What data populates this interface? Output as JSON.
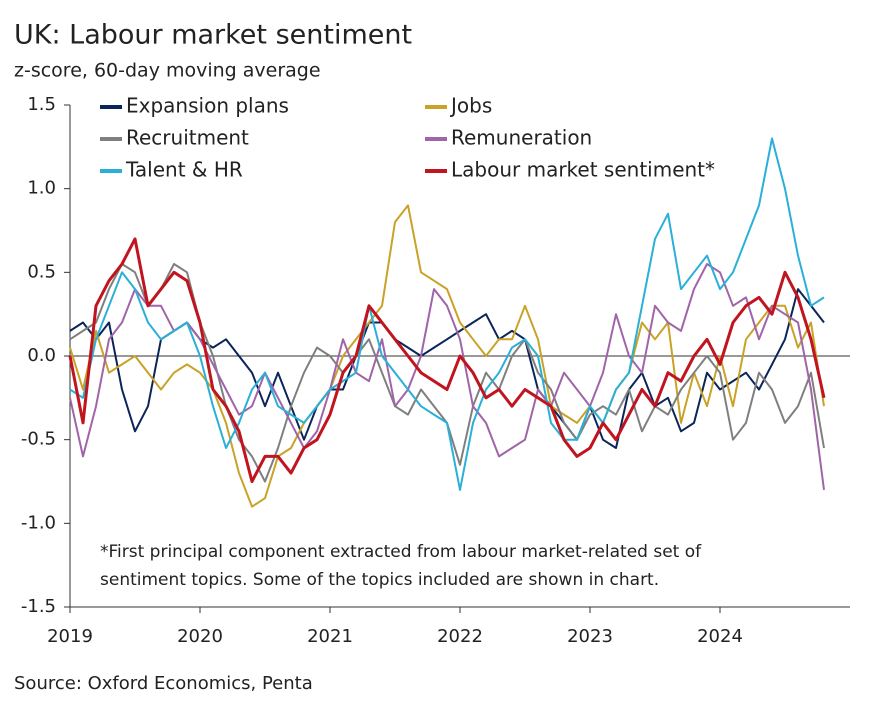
{
  "chart_data": {
    "type": "line",
    "title": "UK: Labour market sentiment",
    "subtitle": "z-score, 60-day moving average",
    "annotation": [
      "*First principal component extracted from labour market-related set of",
      "sentiment topics. Some of the topics included are shown in chart."
    ],
    "source": "Source: Oxford Economics, Penta",
    "x": [
      2019.0,
      2019.1,
      2019.2,
      2019.3,
      2019.4,
      2019.5,
      2019.6,
      2019.7,
      2019.8,
      2019.9,
      2020.0,
      2020.1,
      2020.2,
      2020.3,
      2020.4,
      2020.5,
      2020.6,
      2020.7,
      2020.8,
      2020.9,
      2021.0,
      2021.1,
      2021.2,
      2021.3,
      2021.4,
      2021.5,
      2021.6,
      2021.7,
      2021.8,
      2021.9,
      2022.0,
      2022.1,
      2022.2,
      2022.3,
      2022.4,
      2022.5,
      2022.6,
      2022.7,
      2022.8,
      2022.9,
      2023.0,
      2023.1,
      2023.2,
      2023.3,
      2023.4,
      2023.5,
      2023.6,
      2023.7,
      2023.8,
      2023.9,
      2024.0,
      2024.1,
      2024.2,
      2024.3,
      2024.4,
      2024.5,
      2024.6,
      2024.7,
      2024.8
    ],
    "series": [
      {
        "name": "Expansion plans",
        "color": "#0b2559",
        "values": [
          0.15,
          0.2,
          0.1,
          0.2,
          -0.2,
          -0.45,
          -0.3,
          0.1,
          0.15,
          0.2,
          0.1,
          0.05,
          0.1,
          0,
          -0.1,
          -0.3,
          -0.1,
          -0.3,
          -0.5,
          -0.3,
          -0.2,
          -0.2,
          0,
          0.2,
          0.2,
          0.1,
          0.05,
          0,
          0.05,
          0.1,
          0.15,
          0.2,
          0.25,
          0.1,
          0.15,
          0.1,
          -0.2,
          -0.3,
          -0.4,
          -0.5,
          -0.3,
          -0.5,
          -0.55,
          -0.2,
          -0.1,
          -0.3,
          -0.25,
          -0.45,
          -0.4,
          -0.1,
          -0.2,
          -0.15,
          -0.1,
          -0.2,
          -0.05,
          0.1,
          0.4,
          0.3,
          0.2
        ]
      },
      {
        "name": "Jobs",
        "color": "#c9a227",
        "values": [
          0.05,
          -0.2,
          0.15,
          -0.1,
          -0.05,
          0,
          -0.1,
          -0.2,
          -0.1,
          -0.05,
          -0.1,
          -0.2,
          -0.4,
          -0.7,
          -0.9,
          -0.85,
          -0.6,
          -0.55,
          -0.4,
          -0.3,
          -0.2,
          0,
          0.1,
          0.2,
          0.3,
          0.8,
          0.9,
          0.5,
          0.45,
          0.4,
          0.2,
          0.1,
          0,
          0.1,
          0.1,
          0.3,
          0.1,
          -0.3,
          -0.35,
          -0.4,
          -0.3,
          -0.4,
          -0.2,
          -0.1,
          0.2,
          0.1,
          0.2,
          -0.4,
          -0.1,
          -0.3,
          0,
          -0.3,
          0.1,
          0.2,
          0.3,
          0.3,
          0.05,
          0.2,
          -0.3
        ]
      },
      {
        "name": "Recruitment",
        "color": "#7f7f7f",
        "values": [
          0.1,
          0.15,
          0.2,
          0.4,
          0.55,
          0.5,
          0.3,
          0.4,
          0.55,
          0.5,
          0.2,
          0,
          -0.3,
          -0.5,
          -0.6,
          -0.75,
          -0.55,
          -0.3,
          -0.1,
          0.05,
          0,
          -0.1,
          0,
          0.1,
          -0.1,
          -0.3,
          -0.35,
          -0.2,
          -0.3,
          -0.4,
          -0.65,
          -0.3,
          -0.1,
          -0.2,
          0,
          0.1,
          -0.1,
          -0.2,
          -0.4,
          -0.5,
          -0.35,
          -0.3,
          -0.35,
          -0.2,
          -0.45,
          -0.3,
          -0.35,
          -0.2,
          -0.1,
          0,
          -0.1,
          -0.5,
          -0.4,
          -0.1,
          -0.2,
          -0.4,
          -0.3,
          -0.1,
          -0.55
        ]
      },
      {
        "name": "Remuneration",
        "color": "#a064a8",
        "values": [
          -0.25,
          -0.6,
          -0.3,
          0.1,
          0.2,
          0.4,
          0.3,
          0.3,
          0.15,
          0.2,
          0.1,
          -0.05,
          -0.2,
          -0.35,
          -0.3,
          -0.1,
          -0.25,
          -0.4,
          -0.55,
          -0.45,
          -0.2,
          0.1,
          -0.1,
          -0.15,
          0.1,
          -0.3,
          -0.2,
          0,
          0.4,
          0.3,
          0.1,
          -0.3,
          -0.4,
          -0.6,
          -0.55,
          -0.5,
          -0.2,
          -0.3,
          -0.1,
          -0.2,
          -0.3,
          -0.1,
          0.25,
          0,
          -0.1,
          0.3,
          0.2,
          0.15,
          0.4,
          0.55,
          0.5,
          0.3,
          0.35,
          0.1,
          0.3,
          0.25,
          0.2,
          -0.2,
          -0.8
        ]
      },
      {
        "name": "Talent & HR",
        "color": "#2ab0d8",
        "values": [
          -0.2,
          -0.25,
          0.1,
          0.3,
          0.5,
          0.4,
          0.2,
          0.1,
          0.15,
          0.2,
          0,
          -0.3,
          -0.55,
          -0.4,
          -0.2,
          -0.1,
          -0.3,
          -0.35,
          -0.4,
          -0.3,
          -0.2,
          -0.15,
          -0.1,
          0.3,
          0,
          -0.1,
          -0.2,
          -0.3,
          -0.35,
          -0.4,
          -0.8,
          -0.4,
          -0.2,
          -0.1,
          0.05,
          0.1,
          0,
          -0.4,
          -0.5,
          -0.5,
          -0.3,
          -0.4,
          -0.2,
          -0.1,
          0.3,
          0.7,
          0.85,
          0.4,
          0.5,
          0.6,
          0.4,
          0.5,
          0.7,
          0.9,
          1.3,
          1.0,
          0.6,
          0.3,
          0.35
        ]
      },
      {
        "name": "Labour market sentiment*",
        "color": "#c0141f",
        "values": [
          0,
          -0.4,
          0.3,
          0.45,
          0.55,
          0.7,
          0.3,
          0.4,
          0.5,
          0.45,
          0.2,
          -0.2,
          -0.3,
          -0.45,
          -0.75,
          -0.6,
          -0.6,
          -0.7,
          -0.55,
          -0.5,
          -0.35,
          -0.1,
          0,
          0.3,
          0.2,
          0.1,
          0,
          -0.1,
          -0.15,
          -0.2,
          0,
          -0.1,
          -0.25,
          -0.2,
          -0.3,
          -0.2,
          -0.25,
          -0.3,
          -0.5,
          -0.6,
          -0.55,
          -0.4,
          -0.5,
          -0.35,
          -0.2,
          -0.3,
          -0.1,
          -0.15,
          0,
          0.1,
          -0.05,
          0.2,
          0.3,
          0.35,
          0.25,
          0.5,
          0.35,
          0.1,
          -0.25
        ]
      }
    ],
    "xlim": [
      2019,
      2025
    ],
    "xticks": [
      2019,
      2020,
      2021,
      2022,
      2023,
      2024
    ],
    "ylim": [
      -1.5,
      1.5
    ],
    "yticks": [
      1.5,
      {
        "value": 1,
        "label": "1.0"
      },
      0.5,
      {
        "value": 0,
        "label": "0.0"
      },
      -0.5,
      {
        "value": -1,
        "label": "-1.0"
      },
      -1.5
    ]
  }
}
